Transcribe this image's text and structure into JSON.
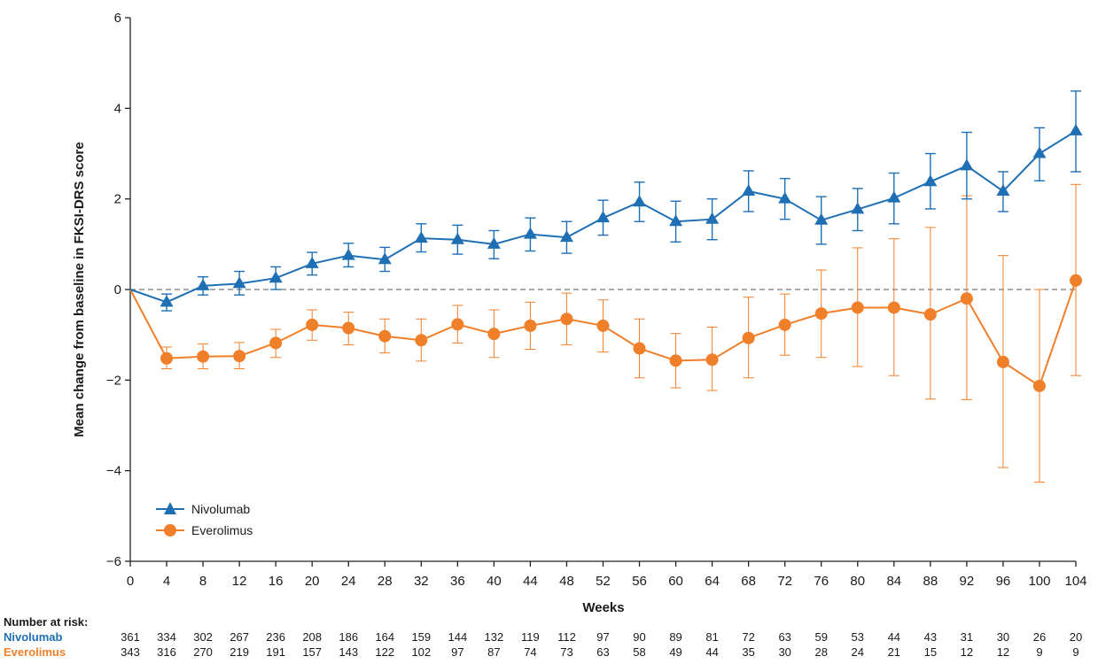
{
  "chart_data": {
    "type": "line",
    "title": "",
    "xlabel": "Weeks",
    "ylabel": "Mean change from baseline in FKSI-DRS score",
    "xlim": [
      0,
      104
    ],
    "ylim": [
      -6,
      6
    ],
    "x_ticks": [
      0,
      4,
      8,
      12,
      16,
      20,
      24,
      28,
      32,
      36,
      40,
      44,
      48,
      52,
      56,
      60,
      64,
      68,
      72,
      76,
      80,
      84,
      88,
      92,
      96,
      100,
      104
    ],
    "y_ticks": [
      -6,
      -4,
      -2,
      0,
      2,
      4,
      6
    ],
    "y_tick_labels": [
      "−6",
      "−4",
      "−2",
      "0",
      "2",
      "4",
      "6"
    ],
    "reference_line": {
      "y": 0,
      "style": "dashed"
    },
    "grid": false,
    "legend": {
      "placement": "bottom-left"
    },
    "series": [
      {
        "name": "Nivolumab",
        "color": "#1f6fb4",
        "marker": "triangle",
        "x": [
          0,
          4,
          8,
          12,
          16,
          20,
          24,
          28,
          32,
          36,
          40,
          44,
          48,
          52,
          56,
          60,
          64,
          68,
          72,
          76,
          80,
          84,
          88,
          92,
          96,
          100,
          104
        ],
        "y": [
          0,
          -0.28,
          0.08,
          0.13,
          0.25,
          0.57,
          0.75,
          0.66,
          1.13,
          1.1,
          1.0,
          1.22,
          1.15,
          1.58,
          1.93,
          1.5,
          1.55,
          2.17,
          2.0,
          1.53,
          1.77,
          2.02,
          2.38,
          2.73,
          2.17,
          3.0,
          3.5
        ],
        "lower": [
          null,
          -0.47,
          -0.12,
          -0.12,
          0.0,
          0.32,
          0.5,
          0.4,
          0.83,
          0.78,
          0.68,
          0.85,
          0.8,
          1.2,
          1.5,
          1.05,
          1.1,
          1.72,
          1.55,
          1.0,
          1.3,
          1.45,
          1.78,
          2.0,
          1.72,
          2.4,
          2.6
        ],
        "upper": [
          null,
          -0.1,
          0.28,
          0.4,
          0.5,
          0.82,
          1.02,
          0.93,
          1.45,
          1.42,
          1.3,
          1.58,
          1.5,
          1.97,
          2.37,
          1.95,
          2.0,
          2.62,
          2.45,
          2.05,
          2.23,
          2.57,
          3.0,
          3.47,
          2.6,
          3.57,
          4.38
        ]
      },
      {
        "name": "Everolimus",
        "color": "#f07f2a",
        "marker": "circle",
        "x": [
          0,
          4,
          8,
          12,
          16,
          20,
          24,
          28,
          32,
          36,
          40,
          44,
          48,
          52,
          56,
          60,
          64,
          68,
          72,
          76,
          80,
          84,
          88,
          92,
          96,
          100,
          104
        ],
        "y": [
          0,
          -1.52,
          -1.48,
          -1.47,
          -1.18,
          -0.78,
          -0.85,
          -1.03,
          -1.12,
          -0.77,
          -0.98,
          -0.8,
          -0.65,
          -0.8,
          -1.3,
          -1.57,
          -1.55,
          -1.07,
          -0.78,
          -0.53,
          -0.4,
          -0.4,
          -0.55,
          -0.2,
          -1.6,
          -2.13,
          0.2
        ],
        "lower": [
          null,
          -1.75,
          -1.75,
          -1.75,
          -1.5,
          -1.12,
          -1.22,
          -1.4,
          -1.58,
          -1.18,
          -1.5,
          -1.32,
          -1.22,
          -1.38,
          -1.95,
          -2.17,
          -2.23,
          -1.95,
          -1.45,
          -1.5,
          -1.7,
          -1.9,
          -2.42,
          -2.43,
          -3.93,
          -4.25,
          -1.9
        ],
        "upper": [
          null,
          -1.27,
          -1.2,
          -1.17,
          -0.88,
          -0.45,
          -0.5,
          -0.65,
          -0.65,
          -0.35,
          -0.45,
          -0.28,
          -0.08,
          -0.23,
          -0.65,
          -0.97,
          -0.83,
          -0.17,
          -0.1,
          0.43,
          0.92,
          1.12,
          1.37,
          2.07,
          0.75,
          0.0,
          2.32
        ]
      }
    ]
  },
  "risk_table": {
    "title": "Number at risk:",
    "rows": [
      {
        "name": "Nivolumab",
        "color": "#1f6fb4",
        "values": [
          "361",
          "334",
          "302",
          "267",
          "236",
          "208",
          "186",
          "164",
          "159",
          "144",
          "132",
          "119",
          "112",
          "97",
          "90",
          "89",
          "81",
          "72",
          "63",
          "59",
          "53",
          "44",
          "43",
          "31",
          "30",
          "26",
          "20"
        ]
      },
      {
        "name": "Everolimus",
        "color": "#f07f2a",
        "values": [
          "343",
          "316",
          "270",
          "219",
          "191",
          "157",
          "143",
          "122",
          "102",
          "97",
          "87",
          "74",
          "73",
          "63",
          "58",
          "49",
          "44",
          "35",
          "30",
          "28",
          "24",
          "21",
          "15",
          "12",
          "12",
          "9",
          "9"
        ]
      }
    ]
  }
}
